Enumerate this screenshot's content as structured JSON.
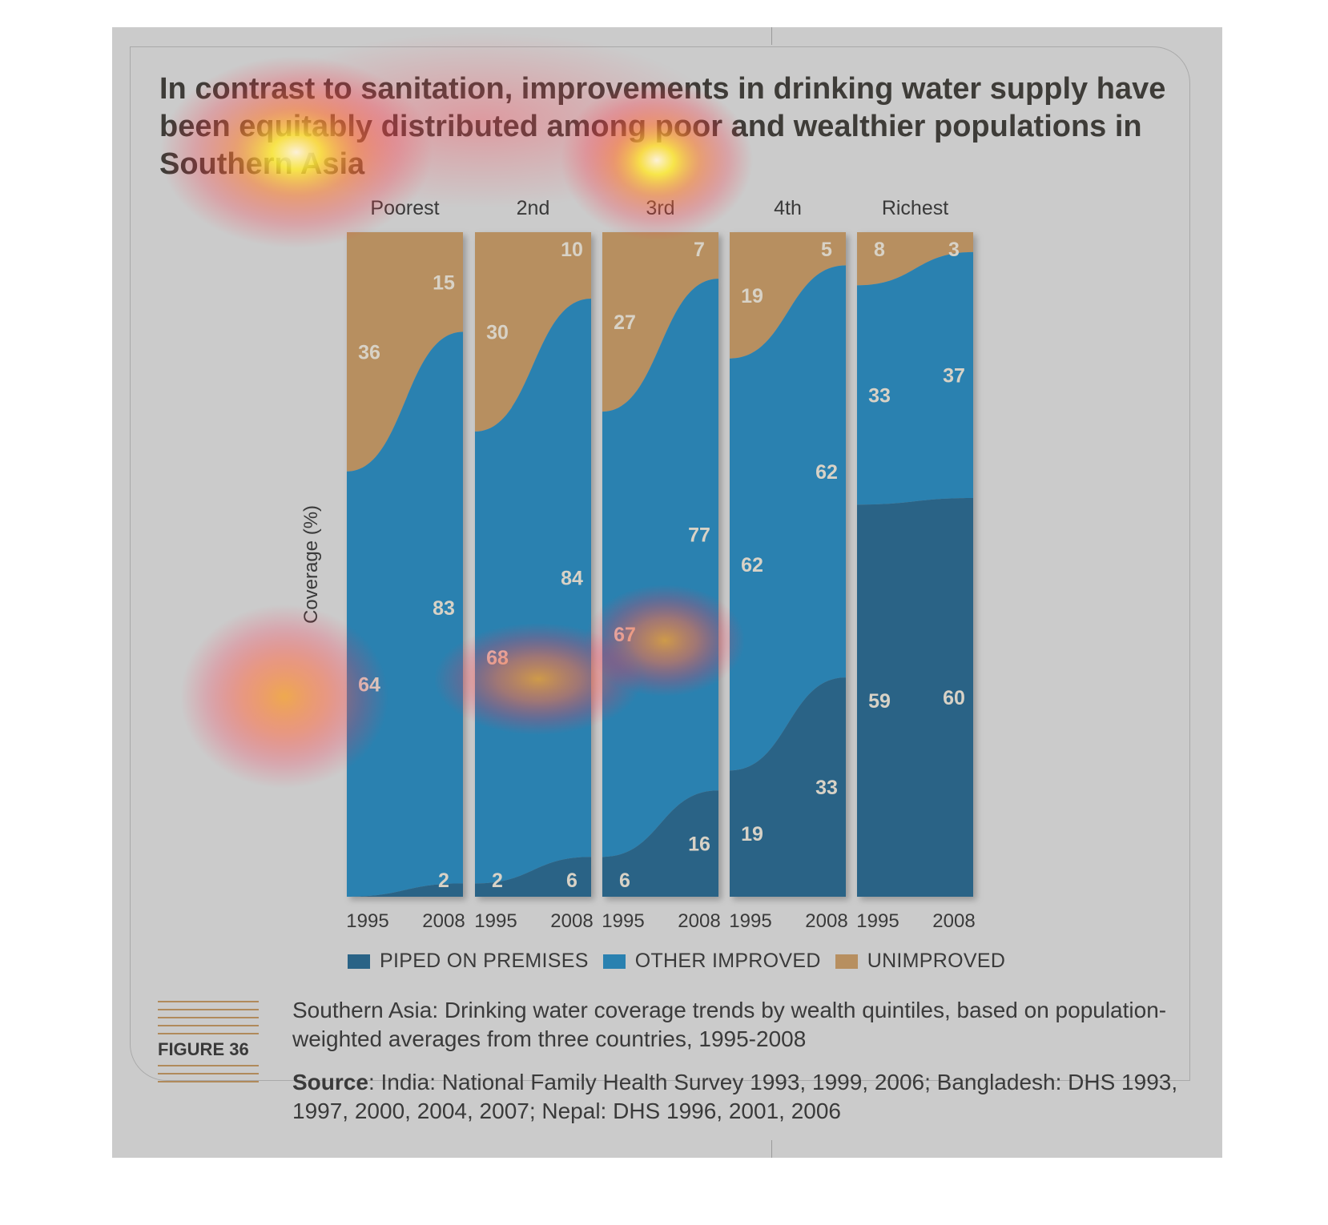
{
  "title": "In contrast to sanitation, improvements in drinking water supply have been equitably distributed among poor and wealthier populations in Southern Asia",
  "figure_label": "FIGURE 36",
  "caption": "Southern Asia: Drinking water coverage trends by wealth quintiles, based on population-weighted averages from three countries, 1995-2008",
  "source_label": "Source",
  "source_text": ": India: National Family Health Survey 1993, 1999, 2006; Bangladesh: DHS 1993, 1997, 2000, 2004, 2007; Nepal: DHS 1996, 2001, 2006",
  "legend": [
    {
      "label": "PIPED ON PREMISES",
      "color": "#2a6386"
    },
    {
      "label": "OTHER IMPROVED",
      "color": "#2a81b0"
    },
    {
      "label": "UNIMPROVED",
      "color": "#b78f60"
    }
  ],
  "chart_data": {
    "type": "area",
    "stacked": true,
    "ylabel": "Coverage (%)",
    "ylim": [
      0,
      100
    ],
    "years": [
      "1995",
      "2008"
    ],
    "groups": [
      {
        "name": "Poorest",
        "piped": [
          0,
          2
        ],
        "other": [
          64,
          83
        ],
        "unimproved": [
          36,
          15
        ]
      },
      {
        "name": "2nd",
        "piped": [
          2,
          6
        ],
        "other": [
          68,
          84
        ],
        "unimproved": [
          30,
          10
        ]
      },
      {
        "name": "3rd",
        "piped": [
          6,
          16
        ],
        "other": [
          67,
          77
        ],
        "unimproved": [
          27,
          7
        ]
      },
      {
        "name": "4th",
        "piped": [
          19,
          33
        ],
        "other": [
          62,
          62
        ],
        "unimproved": [
          19,
          5
        ]
      },
      {
        "name": "Richest",
        "piped": [
          59,
          60
        ],
        "other": [
          33,
          37
        ],
        "unimproved": [
          8,
          3
        ]
      }
    ],
    "series_colors": {
      "piped": "#2a6386",
      "other": "#2a81b0",
      "unimproved": "#b78f60"
    },
    "heatmap_overlay": true
  }
}
